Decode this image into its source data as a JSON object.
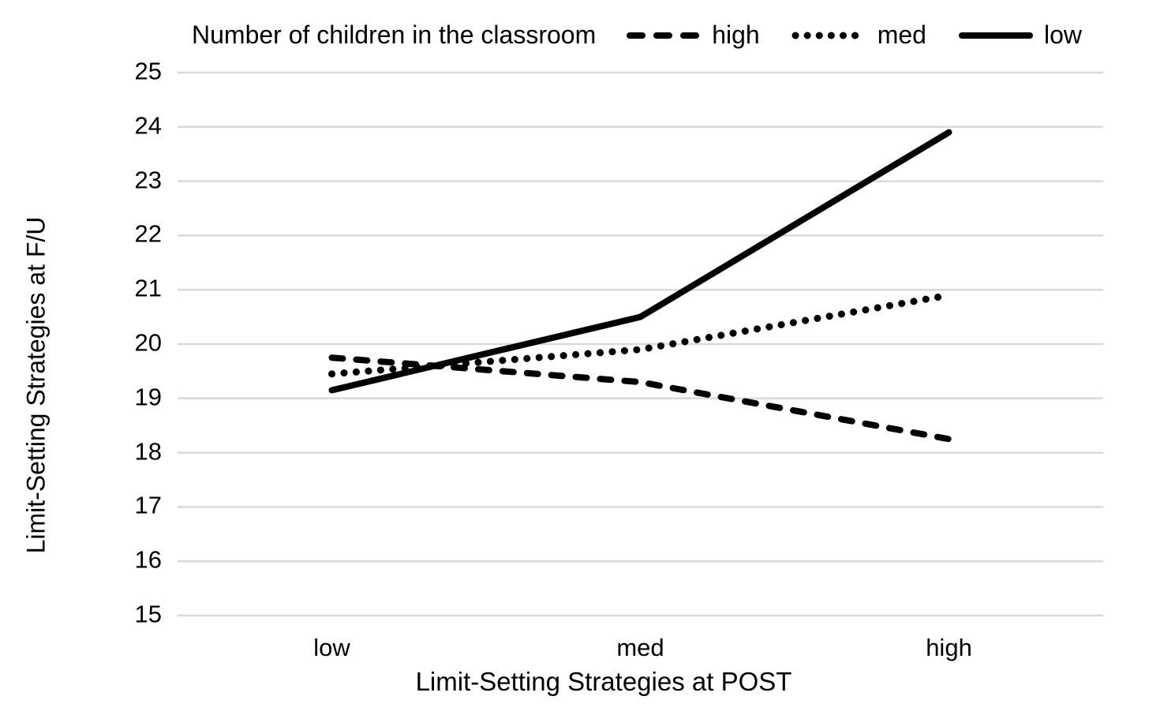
{
  "chart_data": {
    "type": "line",
    "legend_title": "Number of children in the classroom",
    "legend_position": "top",
    "xlabel": "Limit-Setting Strategies at POST",
    "ylabel": "Limit-Setting Strategies at F/U",
    "categories": [
      "low",
      "med",
      "high"
    ],
    "yticks": [
      15,
      16,
      17,
      18,
      19,
      20,
      21,
      22,
      23,
      24,
      25
    ],
    "ylim": [
      15,
      25
    ],
    "grid": "horizontal",
    "series": [
      {
        "name": "high",
        "style": "dashed",
        "values": [
          19.75,
          19.3,
          18.25
        ]
      },
      {
        "name": "med",
        "style": "dotted",
        "values": [
          19.45,
          19.9,
          20.9
        ]
      },
      {
        "name": "low",
        "style": "solid",
        "values": [
          19.15,
          20.5,
          23.9
        ]
      }
    ],
    "colors": {
      "line": "#000000",
      "grid": "#d9d9d9",
      "text": "#000000",
      "background": "#ffffff"
    }
  }
}
